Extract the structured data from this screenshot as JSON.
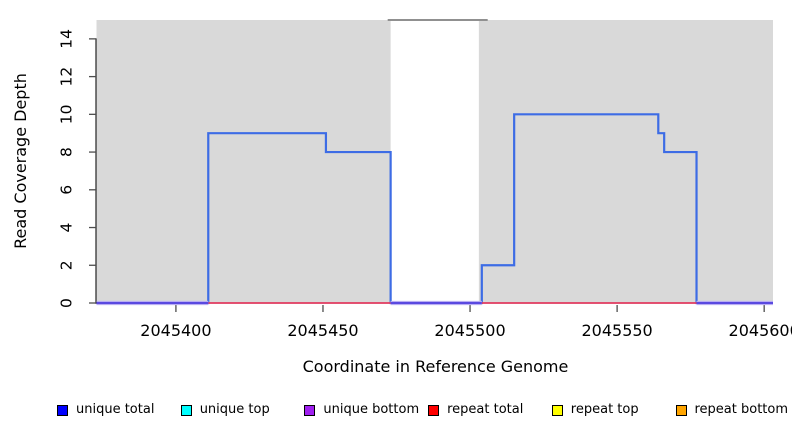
{
  "chart_data": {
    "type": "line",
    "subtype": "step-coverage",
    "title": "",
    "xlabel": "Coordinate in Reference Genome",
    "ylabel": "Read Coverage Depth",
    "xlim": [
      2045373,
      2045603
    ],
    "ylim": [
      0,
      15
    ],
    "x_ticks": [
      2045400,
      2045450,
      2045500,
      2045550,
      2045600
    ],
    "y_ticks": [
      0,
      2,
      4,
      6,
      8,
      10,
      12,
      14
    ],
    "grid": false,
    "legend_position": "bottom",
    "mask_regions": {
      "comment": "light gray shaded genomic regions drawn from depth 0 to 15",
      "fill": "#d9d9d9",
      "height": 15,
      "regions": [
        [
          2045373,
          2045473
        ],
        [
          2045503,
          2045603
        ]
      ]
    },
    "gap_top_line": {
      "comment": "dark gray line at depth 15 spanning the white (unshaded) gap",
      "color": "#909090",
      "y": 15,
      "x": [
        2045472,
        2045506
      ]
    },
    "series": [
      {
        "name": "unique total",
        "color": "#3d6ce5",
        "style": "step",
        "steps": [
          [
            2045373,
            0
          ],
          [
            2045411,
            9
          ],
          [
            2045451,
            8
          ],
          [
            2045473,
            0
          ],
          [
            2045504,
            2
          ],
          [
            2045515,
            10
          ],
          [
            2045564,
            9
          ],
          [
            2045566,
            8
          ],
          [
            2045577,
            0
          ]
        ],
        "x_end": 2045603
      },
      {
        "name": "repeat total",
        "color": "#e03a5f",
        "style": "zero-line-segments",
        "value": 0,
        "segments": [
          [
            2045411,
            2045473
          ],
          [
            2045504,
            2045577
          ]
        ]
      },
      {
        "name": "unique top / unique bottom overlap at zero",
        "color": "#5a49e0",
        "halo_color": "#b9aef2",
        "style": "zero-line-segments",
        "value": 0,
        "segments": [
          [
            2045373,
            2045411
          ],
          [
            2045473,
            2045504
          ],
          [
            2045577,
            2045603
          ]
        ]
      }
    ]
  },
  "axes": {
    "x_title": "Coordinate in Reference Genome",
    "y_title": "Read Coverage Depth",
    "tick_color": "#4d4d4d",
    "axis_line_color": "#333333"
  },
  "legend": {
    "items": [
      {
        "label": "unique total",
        "color": "#0000ff"
      },
      {
        "label": "unique top",
        "color": "#00ffff"
      },
      {
        "label": "unique bottom",
        "color": "#a020f0"
      },
      {
        "label": "repeat total",
        "color": "#ff0000"
      },
      {
        "label": "repeat top",
        "color": "#ffff00"
      },
      {
        "label": "repeat bottom",
        "color": "#ffa500"
      }
    ]
  }
}
